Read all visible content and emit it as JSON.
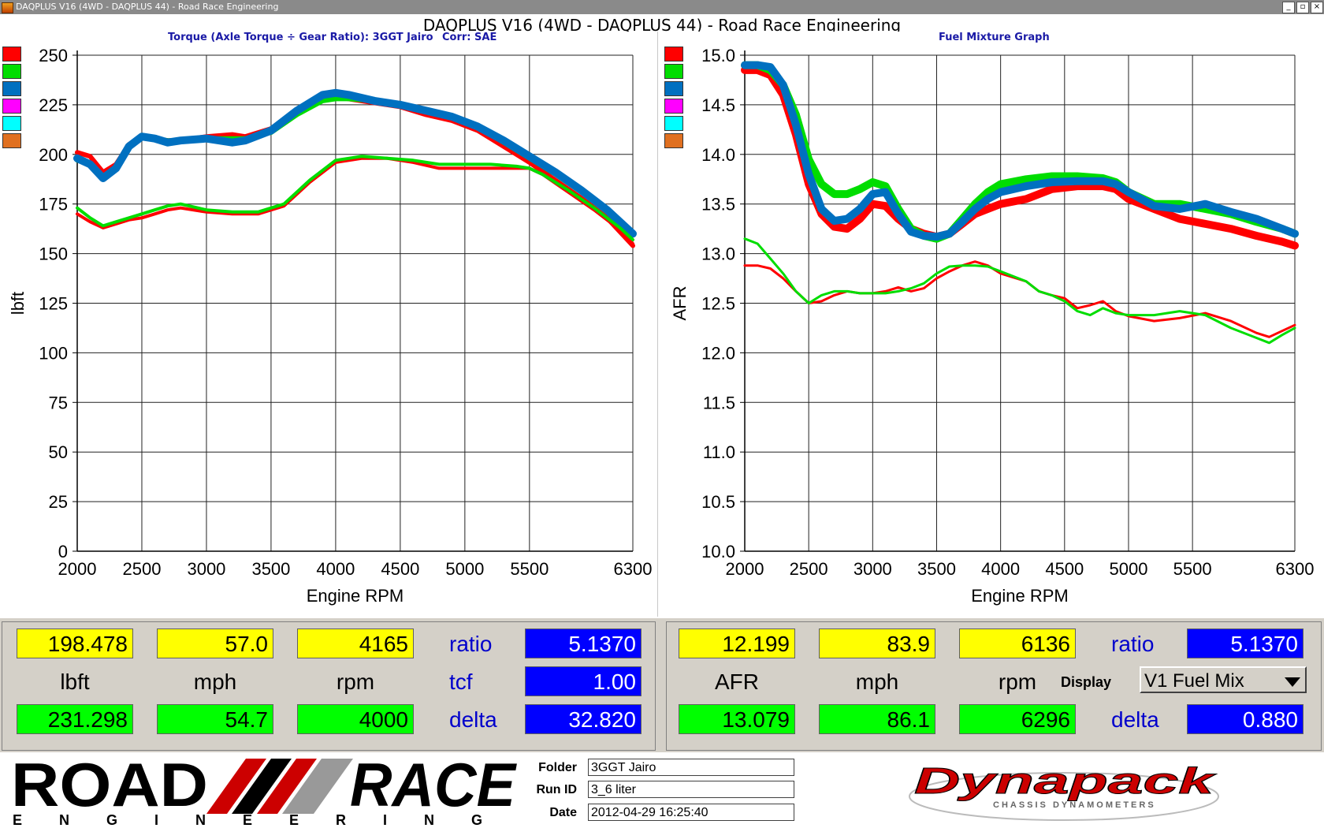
{
  "window": {
    "title": "DAQPLUS V16 (4WD - DAQPLUS 44) - Road Race Engineering",
    "page_header": "DAQPLUS V16 (4WD - DAQPLUS 44) - Road Race Engineering",
    "minimize_glyph": "_",
    "restore_glyph": "▫",
    "close_glyph": "×"
  },
  "legend_colors": [
    "#ff0000",
    "#00dd00",
    "#0070c0",
    "#ff00ff",
    "#00ffff",
    "#e07020"
  ],
  "left_chart": {
    "title": "Torque (Axle Torque ÷ Gear Ratio): 3GGT Jairo",
    "corr": "Corr: SAE"
  },
  "right_chart": {
    "title": "Fuel Mixture Graph"
  },
  "chart_data": [
    {
      "type": "line",
      "title": "Torque (Axle Torque ÷ Gear Ratio): 3GGT Jairo",
      "xlabel": "Engine RPM",
      "ylabel": "lbft",
      "xlim": [
        2000,
        6300
      ],
      "ylim": [
        0,
        250
      ],
      "xticks": [
        2000,
        2500,
        3000,
        3500,
        4000,
        4500,
        5000,
        5500,
        6300
      ],
      "yticks": [
        0,
        25,
        50,
        75,
        100,
        125,
        150,
        175,
        200,
        225,
        250
      ],
      "grid": true,
      "series": [
        {
          "color": "#ff0000",
          "width": 6,
          "x": [
            2000,
            2100,
            2200,
            2300,
            2400,
            2500,
            2600,
            2700,
            2800,
            3000,
            3200,
            3300,
            3500,
            3700,
            3900,
            4000,
            4100,
            4300,
            4500,
            4700,
            4900,
            5100,
            5300,
            5500,
            5700,
            5900,
            6100,
            6300
          ],
          "y": [
            201,
            199,
            191,
            195,
            205,
            209,
            208,
            207,
            207,
            209,
            210,
            209,
            213,
            222,
            229,
            229,
            228,
            226,
            224,
            220,
            217,
            212,
            204,
            196,
            187,
            178,
            168,
            154
          ]
        },
        {
          "color": "#00dd00",
          "width": 6,
          "x": [
            2000,
            2100,
            2200,
            2300,
            2400,
            2500,
            2600,
            2700,
            2800,
            3000,
            3200,
            3300,
            3500,
            3700,
            3900,
            4000,
            4100,
            4300,
            4500,
            4700,
            4900,
            5100,
            5300,
            5500,
            5700,
            5900,
            6100,
            6300
          ],
          "y": [
            197,
            195,
            189,
            193,
            204,
            209,
            208,
            207,
            207,
            208,
            208,
            208,
            211,
            220,
            227,
            228,
            228,
            227,
            225,
            222,
            219,
            214,
            206,
            198,
            190,
            181,
            171,
            160
          ]
        },
        {
          "color": "#0070c0",
          "width": 10,
          "x": [
            2000,
            2100,
            2200,
            2300,
            2400,
            2500,
            2600,
            2700,
            2800,
            3000,
            3200,
            3300,
            3500,
            3700,
            3900,
            4000,
            4100,
            4300,
            4500,
            4700,
            4900,
            5100,
            5300,
            5500,
            5700,
            5900,
            6100,
            6300
          ],
          "y": [
            198,
            195,
            188,
            193,
            204,
            209,
            208,
            206,
            207,
            208,
            206,
            207,
            212,
            222,
            230,
            231,
            230,
            227,
            225,
            222,
            219,
            214,
            207,
            199,
            191,
            182,
            172,
            160
          ]
        },
        {
          "color": "#ff0000",
          "width": 4,
          "x": [
            2000,
            2100,
            2200,
            2300,
            2400,
            2500,
            2600,
            2700,
            2800,
            3000,
            3200,
            3400,
            3600,
            3800,
            4000,
            4200,
            4400,
            4600,
            4800,
            5000,
            5200,
            5400,
            5500,
            5600,
            5800,
            6000,
            6200,
            6300
          ],
          "y": [
            170,
            166,
            163,
            165,
            167,
            168,
            170,
            172,
            173,
            171,
            170,
            170,
            174,
            186,
            196,
            198,
            198,
            196,
            193,
            193,
            193,
            193,
            193,
            190,
            181,
            172,
            162,
            155
          ]
        },
        {
          "color": "#00dd00",
          "width": 4,
          "x": [
            2000,
            2100,
            2200,
            2300,
            2400,
            2500,
            2600,
            2700,
            2800,
            3000,
            3200,
            3400,
            3600,
            3800,
            4000,
            4200,
            4400,
            4600,
            4800,
            5000,
            5200,
            5400,
            5500,
            5600,
            5800,
            6000,
            6200,
            6300
          ],
          "y": [
            173,
            168,
            164,
            166,
            168,
            170,
            172,
            174,
            175,
            172,
            171,
            171,
            175,
            187,
            197,
            199,
            198,
            197,
            195,
            195,
            195,
            194,
            193,
            190,
            182,
            173,
            163,
            157
          ]
        }
      ]
    },
    {
      "type": "line",
      "title": "Fuel Mixture Graph",
      "xlabel": "Engine RPM",
      "ylabel": "AFR",
      "xlim": [
        2000,
        6300
      ],
      "ylim": [
        10.0,
        15.0
      ],
      "xticks": [
        2000,
        2500,
        3000,
        3500,
        4000,
        4500,
        5000,
        5500,
        6300
      ],
      "yticks": [
        10.0,
        10.5,
        11.0,
        11.5,
        12.0,
        12.5,
        13.0,
        13.5,
        14.0,
        14.5,
        15.0
      ],
      "grid": true,
      "series": [
        {
          "color": "#ff0000",
          "width": 10,
          "x": [
            2000,
            2100,
            2200,
            2300,
            2400,
            2500,
            2600,
            2700,
            2800,
            2900,
            3000,
            3100,
            3200,
            3300,
            3400,
            3500,
            3600,
            3700,
            3800,
            3900,
            4000,
            4200,
            4400,
            4600,
            4800,
            4900,
            5000,
            5200,
            5400,
            5600,
            5800,
            6000,
            6200,
            6300
          ],
          "y": [
            14.85,
            14.85,
            14.8,
            14.6,
            14.2,
            13.7,
            13.4,
            13.27,
            13.25,
            13.35,
            13.5,
            13.48,
            13.35,
            13.25,
            13.2,
            13.17,
            13.2,
            13.3,
            13.4,
            13.45,
            13.5,
            13.55,
            13.65,
            13.68,
            13.68,
            13.65,
            13.55,
            13.45,
            13.35,
            13.3,
            13.25,
            13.18,
            13.12,
            13.08
          ]
        },
        {
          "color": "#00dd00",
          "width": 10,
          "x": [
            2000,
            2100,
            2200,
            2300,
            2400,
            2500,
            2600,
            2700,
            2800,
            2900,
            3000,
            3100,
            3200,
            3300,
            3400,
            3500,
            3600,
            3700,
            3800,
            3900,
            4000,
            4200,
            4400,
            4600,
            4800,
            4900,
            5000,
            5200,
            5400,
            5600,
            5800,
            6000,
            6200,
            6300
          ],
          "y": [
            14.9,
            14.9,
            14.85,
            14.7,
            14.4,
            13.95,
            13.7,
            13.6,
            13.6,
            13.65,
            13.72,
            13.68,
            13.45,
            13.25,
            13.18,
            13.15,
            13.2,
            13.35,
            13.5,
            13.62,
            13.7,
            13.75,
            13.78,
            13.78,
            13.76,
            13.72,
            13.62,
            13.5,
            13.5,
            13.45,
            13.4,
            13.32,
            13.25,
            13.2
          ]
        },
        {
          "color": "#0070c0",
          "width": 10,
          "x": [
            2000,
            2100,
            2200,
            2300,
            2400,
            2500,
            2600,
            2700,
            2800,
            2900,
            3000,
            3100,
            3200,
            3300,
            3400,
            3500,
            3600,
            3700,
            3800,
            3900,
            4000,
            4200,
            4400,
            4600,
            4800,
            4900,
            5000,
            5200,
            5400,
            5600,
            5800,
            6000,
            6200,
            6300
          ],
          "y": [
            14.9,
            14.9,
            14.88,
            14.7,
            14.3,
            13.8,
            13.45,
            13.33,
            13.35,
            13.45,
            13.6,
            13.62,
            13.4,
            13.22,
            13.18,
            13.17,
            13.2,
            13.32,
            13.45,
            13.55,
            13.62,
            13.68,
            13.72,
            13.73,
            13.73,
            13.7,
            13.62,
            13.48,
            13.45,
            13.5,
            13.42,
            13.35,
            13.25,
            13.2
          ]
        },
        {
          "color": "#ff0000",
          "width": 3,
          "x": [
            2000,
            2100,
            2200,
            2300,
            2400,
            2500,
            2600,
            2700,
            2800,
            2900,
            3000,
            3100,
            3200,
            3300,
            3400,
            3500,
            3600,
            3700,
            3800,
            3900,
            4000,
            4200,
            4300,
            4400,
            4500,
            4600,
            4700,
            4800,
            4900,
            5000,
            5200,
            5400,
            5600,
            5800,
            6000,
            6100,
            6200,
            6300
          ],
          "y": [
            12.88,
            12.88,
            12.85,
            12.75,
            12.62,
            12.5,
            12.52,
            12.58,
            12.62,
            12.6,
            12.6,
            12.62,
            12.66,
            12.62,
            12.65,
            12.75,
            12.82,
            12.88,
            12.92,
            12.88,
            12.8,
            12.72,
            12.62,
            12.58,
            12.55,
            12.45,
            12.48,
            12.52,
            12.42,
            12.37,
            12.32,
            12.35,
            12.4,
            12.32,
            12.2,
            12.16,
            12.22,
            12.28
          ]
        },
        {
          "color": "#00dd00",
          "width": 3,
          "x": [
            2000,
            2100,
            2200,
            2300,
            2400,
            2500,
            2600,
            2700,
            2800,
            2900,
            3000,
            3100,
            3200,
            3300,
            3400,
            3500,
            3600,
            3700,
            3800,
            3900,
            4000,
            4200,
            4300,
            4400,
            4500,
            4600,
            4700,
            4800,
            4900,
            5000,
            5200,
            5400,
            5600,
            5800,
            6000,
            6100,
            6200,
            6300
          ],
          "y": [
            13.15,
            13.1,
            12.95,
            12.8,
            12.62,
            12.5,
            12.58,
            12.62,
            12.62,
            12.6,
            12.6,
            12.6,
            12.62,
            12.65,
            12.7,
            12.8,
            12.87,
            12.88,
            12.88,
            12.87,
            12.82,
            12.72,
            12.62,
            12.58,
            12.52,
            12.42,
            12.38,
            12.45,
            12.4,
            12.38,
            12.38,
            12.42,
            12.38,
            12.25,
            12.15,
            12.1,
            12.18,
            12.25
          ]
        }
      ]
    }
  ],
  "readouts_left": {
    "cursor_val": "198.478",
    "cursor_speed": "57.0",
    "cursor_rpm": "4165",
    "unit_torque": "lbft",
    "unit_speed": "mph",
    "unit_rpm": "rpm",
    "max_val": "231.298",
    "max_speed": "54.7",
    "max_rpm": "4000",
    "ratio_label": "ratio",
    "ratio_value": "5.1370",
    "tcf_label": "tcf",
    "tcf_value": "1.00",
    "delta_label": "delta",
    "delta_value": "32.820"
  },
  "readouts_right": {
    "cursor_val": "12.199",
    "cursor_speed": "83.9",
    "cursor_rpm": "6136",
    "unit_afr": "AFR",
    "unit_speed": "mph",
    "unit_rpm": "rpm",
    "max_val": "13.079",
    "max_speed": "86.1",
    "max_rpm": "6296",
    "ratio_label": "ratio",
    "ratio_value": "5.1370",
    "display_label": "Display",
    "display_select": "V1 Fuel Mix",
    "delta_label": "delta",
    "delta_value": "0.880"
  },
  "footer": {
    "rr_logo_word1": "ROAD",
    "rr_logo_word2": "RACE",
    "rr_logo_sub": "ENGINEERING",
    "folder_label": "Folder",
    "folder_value": "3GGT Jairo",
    "runid_label": "Run ID",
    "runid_value": "3_6 liter",
    "date_label": "Date",
    "date_value": "2012-04-29 16:25:40",
    "dynapack_word": "Dynapack",
    "dynapack_sub": "CHASSIS DYNAMOMETERS"
  }
}
